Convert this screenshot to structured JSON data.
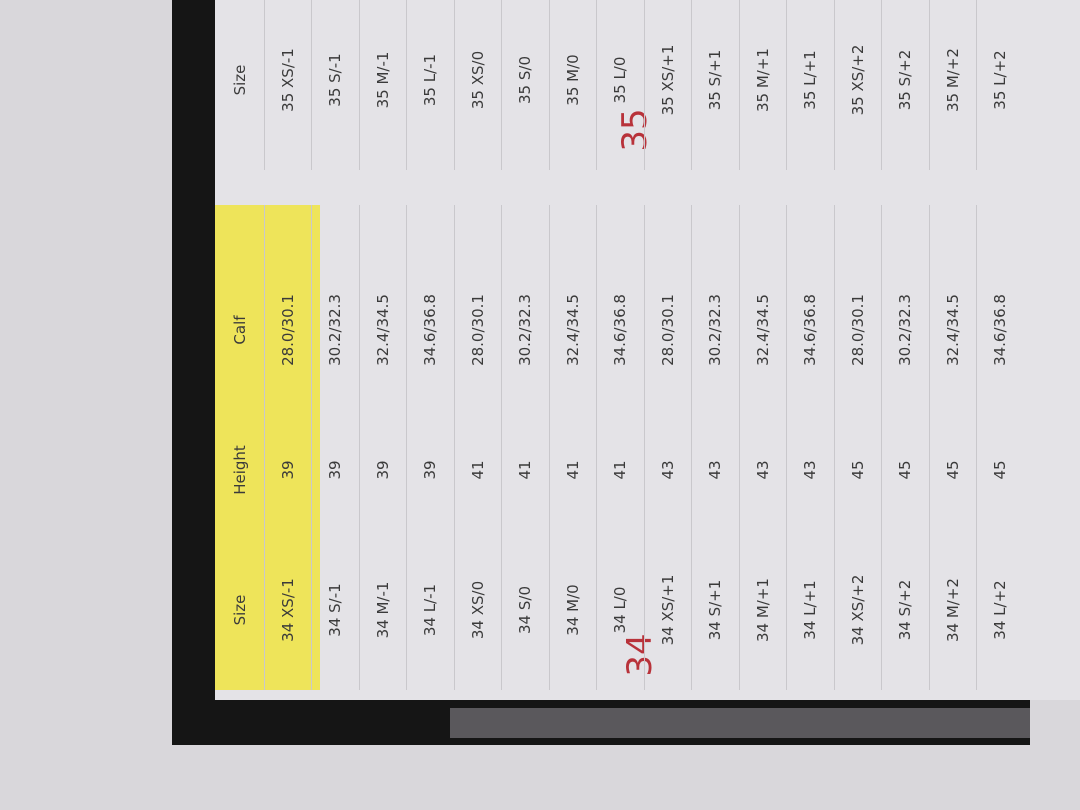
{
  "tables": [
    {
      "label": "34",
      "header": [
        "Size",
        "Height",
        "Calf"
      ],
      "rows": [
        [
          "34 XS/-1",
          "39",
          "28.0/30.1"
        ],
        [
          "34 S/-1",
          "39",
          "30.2/32.3"
        ],
        [
          "34 M/-1",
          "39",
          "32.4/34.5"
        ],
        [
          "34 L/-1",
          "39",
          "34.6/36.8"
        ],
        [
          "34 XS/0",
          "41",
          "28.0/30.1"
        ],
        [
          "34 S/0",
          "41",
          "30.2/32.3"
        ],
        [
          "34 M/0",
          "41",
          "32.4/34.5"
        ],
        [
          "34 L/0",
          "41",
          "34.6/36.8"
        ],
        [
          "34 XS/+1",
          "43",
          "28.0/30.1"
        ],
        [
          "34 S/+1",
          "43",
          "30.2/32.3"
        ],
        [
          "34 M/+1",
          "43",
          "32.4/34.5"
        ],
        [
          "34 L/+1",
          "43",
          "34.6/36.8"
        ],
        [
          "34 XS/+2",
          "45",
          "28.0/30.1"
        ],
        [
          "34 S/+2",
          "45",
          "30.2/32.3"
        ],
        [
          "34 M/+2",
          "45",
          "32.4/34.5"
        ],
        [
          "34 L/+2",
          "45",
          "34.6/36.8"
        ]
      ]
    },
    {
      "label": "35",
      "header": [
        "Size"
      ],
      "rows": [
        [
          "35 XS/-1"
        ],
        [
          "35 S/-1"
        ],
        [
          "35 M/-1"
        ],
        [
          "35 L/-1"
        ],
        [
          "35 XS/0"
        ],
        [
          "35 S/0"
        ],
        [
          "35 M/0"
        ],
        [
          "35 L/0"
        ],
        [
          "35 XS/+1"
        ],
        [
          "35 S/+1"
        ],
        [
          "35 M/+1"
        ],
        [
          "35 L/+1"
        ],
        [
          "35 XS/+2"
        ],
        [
          "35 S/+2"
        ],
        [
          "35 M/+2"
        ],
        [
          "35 L/+2"
        ]
      ]
    }
  ]
}
